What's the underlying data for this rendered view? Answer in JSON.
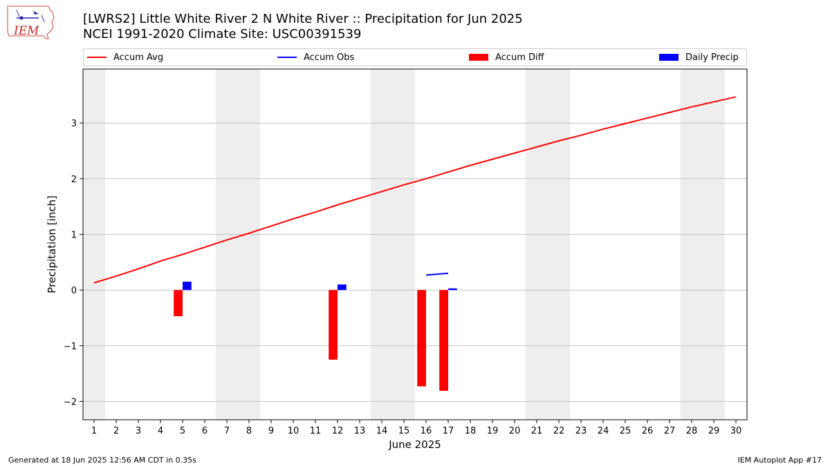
{
  "header": {
    "title_line1": "[LWRS2] Little White River 2 N White River :: Precipitation for Jun 2025",
    "title_line2": "NCEI 1991-2020 Climate Site: USC00391539"
  },
  "logo": {
    "text": "IEM",
    "icon": "iem-iowa-logo"
  },
  "footer": {
    "left": "Generated at 18 Jun 2025 12:56 AM CDT in 0.35s",
    "right": "IEM Autoplot App #17"
  },
  "colors": {
    "accum_avg": "#ff0000",
    "accum_obs": "#0000ff",
    "accum_diff": "#ff0000",
    "daily_precip": "#0000ff",
    "weekend_band": "#eeeeee",
    "grid": "#b0b0b0"
  },
  "chart_data": {
    "type": "bar",
    "xlabel": "June 2025",
    "ylabel": "Precipitation [inch]",
    "xlim": [
      0.5,
      30.5
    ],
    "ylim": [
      -2.33,
      3.97
    ],
    "grid": "horizontal",
    "legend_placement": "top",
    "x_ticks": [
      1,
      2,
      3,
      4,
      5,
      6,
      7,
      8,
      9,
      10,
      11,
      12,
      13,
      14,
      15,
      16,
      17,
      18,
      19,
      20,
      21,
      22,
      23,
      24,
      25,
      26,
      27,
      28,
      29,
      30
    ],
    "y_ticks": [
      -2,
      -1,
      0,
      1,
      2,
      3
    ],
    "y_tick_labels": [
      "−2",
      "−1",
      "0",
      "1",
      "2",
      "3"
    ],
    "weekend_days": [
      1,
      7,
      8,
      14,
      15,
      21,
      22,
      28,
      29
    ],
    "legend": [
      {
        "label": "Accum Avg",
        "kind": "line",
        "color": "#ff0000"
      },
      {
        "label": "Accum Obs",
        "kind": "line",
        "color": "#0000ff"
      },
      {
        "label": "Accum Diff",
        "kind": "bar",
        "color": "#ff0000"
      },
      {
        "label": "Daily Precip",
        "kind": "bar",
        "color": "#0000ff"
      }
    ],
    "series": [
      {
        "name": "Accum Avg",
        "type": "line",
        "x": [
          1,
          2,
          3,
          4,
          5,
          6,
          7,
          8,
          9,
          10,
          11,
          12,
          13,
          14,
          15,
          16,
          17,
          18,
          19,
          20,
          21,
          22,
          23,
          24,
          25,
          26,
          27,
          28,
          29,
          30
        ],
        "values": [
          0.13,
          0.25,
          0.38,
          0.52,
          0.64,
          0.77,
          0.9,
          1.02,
          1.15,
          1.28,
          1.4,
          1.53,
          1.65,
          1.77,
          1.89,
          2.0,
          2.12,
          2.24,
          2.35,
          2.46,
          2.57,
          2.68,
          2.78,
          2.89,
          2.99,
          3.09,
          3.19,
          3.29,
          3.38,
          3.47
        ]
      },
      {
        "name": "Accum Obs",
        "type": "line",
        "x": [
          16,
          17
        ],
        "values": [
          0.27,
          0.3
        ]
      },
      {
        "name": "Accum Diff",
        "type": "bar",
        "x": [
          5,
          12,
          16,
          17
        ],
        "values": [
          -0.47,
          -1.25,
          -1.73,
          -1.81
        ]
      },
      {
        "name": "Daily Precip",
        "type": "bar",
        "x": [
          5,
          12,
          17
        ],
        "values": [
          0.15,
          0.1,
          0.03
        ]
      }
    ]
  }
}
